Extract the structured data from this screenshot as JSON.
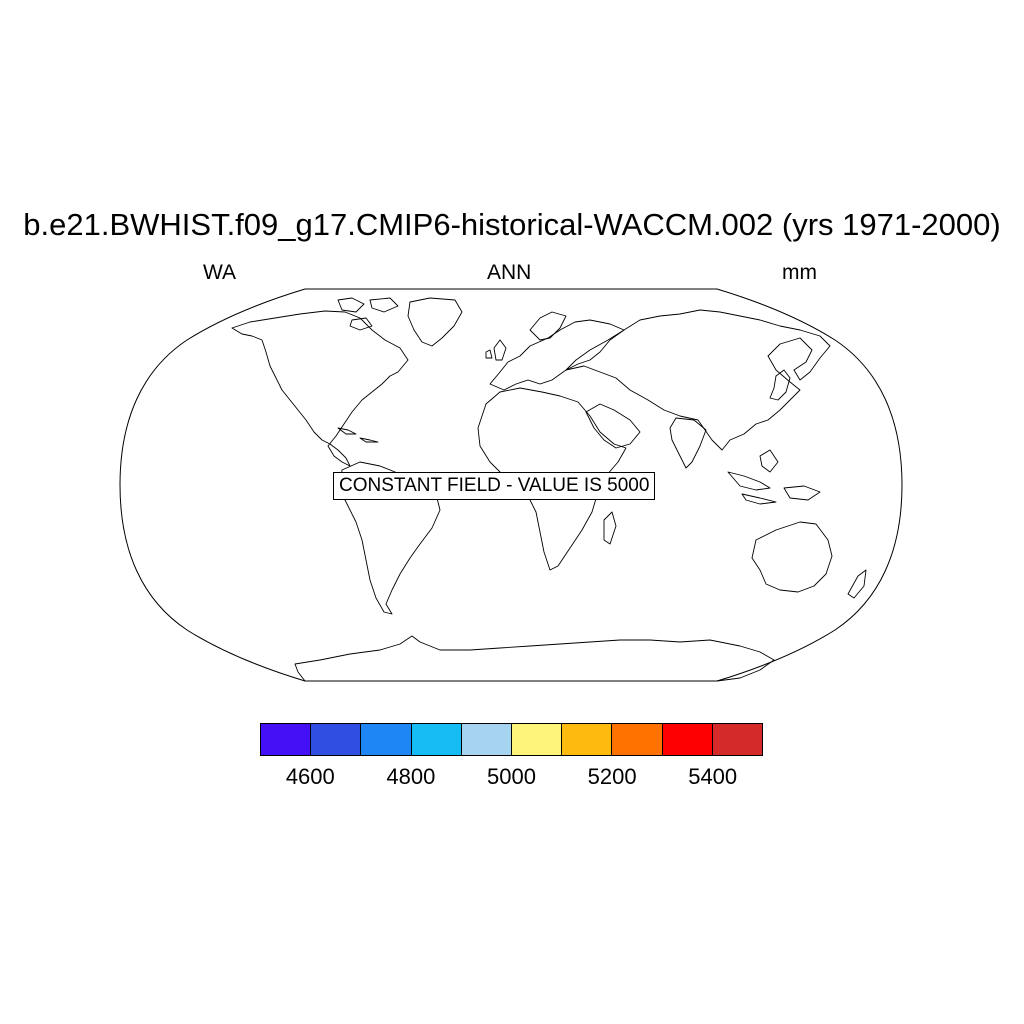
{
  "title": "b.e21.BWHIST.f09_g17.CMIP6-historical-WACCM.002 (yrs 1971-2000)",
  "subtitle_left": "WA",
  "subtitle_center": "ANN",
  "subtitle_right": "mm",
  "map": {
    "projection": "robinson",
    "coastlines": true,
    "fill": "none",
    "annotation": "CONSTANT FIELD - VALUE IS 5000"
  },
  "colorbar": {
    "colors": [
      "#4410f5",
      "#2f4fe3",
      "#1e87f5",
      "#16bdf5",
      "#a6d4f0",
      "#fff47a",
      "#ffba0f",
      "#ff7200",
      "#ff0000",
      "#d42a2a"
    ],
    "labels": [
      "4600",
      "4800",
      "5000",
      "5200",
      "5400"
    ]
  }
}
